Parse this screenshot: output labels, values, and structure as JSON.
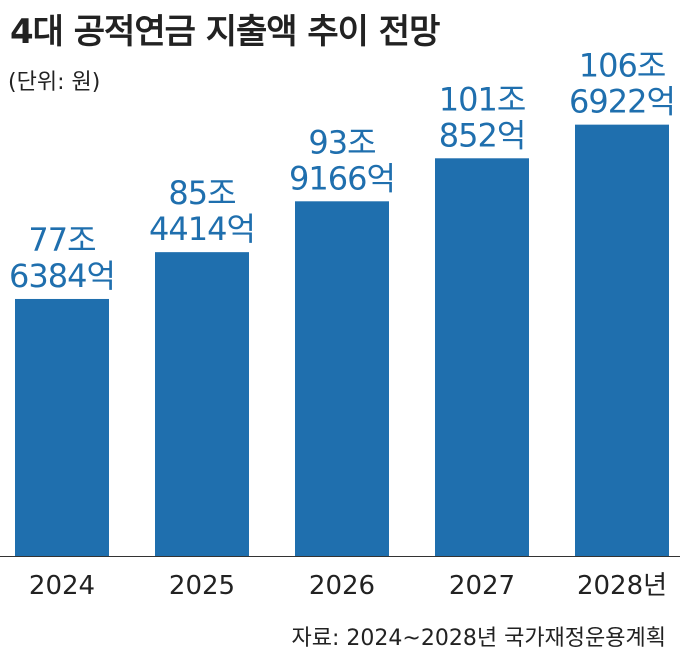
{
  "header": {
    "title": "4대 공적연금 지출액 추이 전망",
    "unit": "(단위: 원)"
  },
  "footer": {
    "source": "자료: 2024~2028년 국가재정운용계획"
  },
  "colors": {
    "bar": "#1f6fae",
    "value_label": "#1f6fae",
    "axis": "#333333"
  },
  "chart_data": {
    "type": "bar",
    "categories": [
      "2024",
      "2025",
      "2026",
      "2027",
      "2028년"
    ],
    "values": [
      77.6384,
      85.4414,
      93.9166,
      101.0852,
      106.6922
    ],
    "value_labels": [
      [
        "77조",
        "6384억"
      ],
      [
        "85조",
        "4414억"
      ],
      [
        "93조",
        "9166억"
      ],
      [
        "101조",
        "852억"
      ],
      [
        "106조",
        "6922억"
      ]
    ],
    "title": "4대 공적연금 지출액 추이 전망",
    "ylabel": "",
    "grid": false,
    "legend": "none"
  }
}
